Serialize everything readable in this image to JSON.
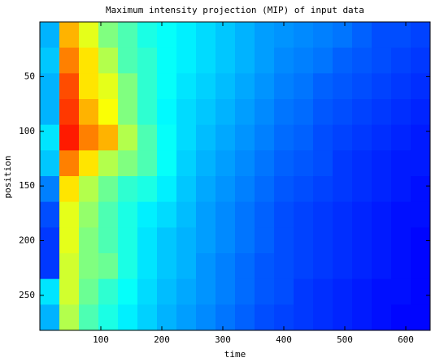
{
  "chart_data": {
    "type": "heatmap",
    "title": "Maximum intensity projection (MIP) of input data",
    "xlabel": "time",
    "ylabel": "position",
    "colormap": "jet",
    "clim": [
      0,
      1
    ],
    "yreverse": true,
    "xlim": [
      0,
      640
    ],
    "ylim": [
      0,
      282
    ],
    "xticks": [
      100,
      200,
      300,
      400,
      500,
      600
    ],
    "yticks": [
      50,
      100,
      150,
      200,
      250
    ],
    "xbins": [
      0,
      32,
      64,
      96,
      128,
      160,
      192,
      224,
      256,
      288,
      320,
      352,
      384,
      416,
      448,
      480,
      512,
      544,
      576,
      608,
      640
    ],
    "ybins": [
      0,
      23.5,
      47,
      70.5,
      94,
      117.5,
      141,
      164.5,
      188,
      211.5,
      235,
      258.5,
      282
    ],
    "values": [
      [
        0.3,
        0.7,
        0.6,
        0.5,
        0.45,
        0.4,
        0.38,
        0.36,
        0.34,
        0.32,
        0.3,
        0.28,
        0.27,
        0.26,
        0.25,
        0.24,
        0.22,
        0.2,
        0.2,
        0.19
      ],
      [
        0.32,
        0.75,
        0.65,
        0.55,
        0.45,
        0.42,
        0.38,
        0.36,
        0.34,
        0.32,
        0.3,
        0.28,
        0.26,
        0.25,
        0.24,
        0.22,
        0.21,
        0.2,
        0.19,
        0.18
      ],
      [
        0.3,
        0.8,
        0.65,
        0.6,
        0.5,
        0.42,
        0.38,
        0.35,
        0.33,
        0.31,
        0.29,
        0.27,
        0.25,
        0.24,
        0.22,
        0.21,
        0.2,
        0.19,
        0.18,
        0.17
      ],
      [
        0.3,
        0.82,
        0.7,
        0.62,
        0.5,
        0.42,
        0.37,
        0.34,
        0.32,
        0.3,
        0.28,
        0.26,
        0.24,
        0.23,
        0.21,
        0.2,
        0.19,
        0.18,
        0.17,
        0.16
      ],
      [
        0.35,
        0.85,
        0.75,
        0.7,
        0.55,
        0.45,
        0.38,
        0.34,
        0.31,
        0.29,
        0.27,
        0.25,
        0.23,
        0.22,
        0.2,
        0.19,
        0.18,
        0.17,
        0.16,
        0.15
      ],
      [
        0.32,
        0.75,
        0.65,
        0.55,
        0.5,
        0.45,
        0.38,
        0.33,
        0.3,
        0.28,
        0.26,
        0.24,
        0.22,
        0.21,
        0.2,
        0.18,
        0.17,
        0.16,
        0.15,
        0.15
      ],
      [
        0.25,
        0.65,
        0.55,
        0.48,
        0.42,
        0.4,
        0.36,
        0.32,
        0.29,
        0.27,
        0.25,
        0.23,
        0.21,
        0.2,
        0.19,
        0.18,
        0.17,
        0.16,
        0.15,
        0.14
      ],
      [
        0.2,
        0.6,
        0.52,
        0.45,
        0.4,
        0.36,
        0.34,
        0.31,
        0.28,
        0.26,
        0.24,
        0.22,
        0.2,
        0.19,
        0.18,
        0.17,
        0.16,
        0.15,
        0.14,
        0.14
      ],
      [
        0.18,
        0.6,
        0.5,
        0.45,
        0.4,
        0.35,
        0.32,
        0.3,
        0.28,
        0.26,
        0.24,
        0.22,
        0.2,
        0.19,
        0.18,
        0.17,
        0.16,
        0.15,
        0.14,
        0.13
      ],
      [
        0.18,
        0.58,
        0.5,
        0.48,
        0.4,
        0.35,
        0.32,
        0.3,
        0.27,
        0.25,
        0.23,
        0.21,
        0.2,
        0.19,
        0.18,
        0.17,
        0.16,
        0.15,
        0.14,
        0.13
      ],
      [
        0.35,
        0.58,
        0.48,
        0.42,
        0.38,
        0.34,
        0.31,
        0.29,
        0.27,
        0.25,
        0.23,
        0.21,
        0.2,
        0.18,
        0.17,
        0.16,
        0.15,
        0.14,
        0.14,
        0.13
      ],
      [
        0.3,
        0.55,
        0.45,
        0.4,
        0.36,
        0.33,
        0.3,
        0.28,
        0.26,
        0.24,
        0.22,
        0.2,
        0.19,
        0.18,
        0.17,
        0.16,
        0.15,
        0.14,
        0.13,
        0.13
      ]
    ]
  }
}
